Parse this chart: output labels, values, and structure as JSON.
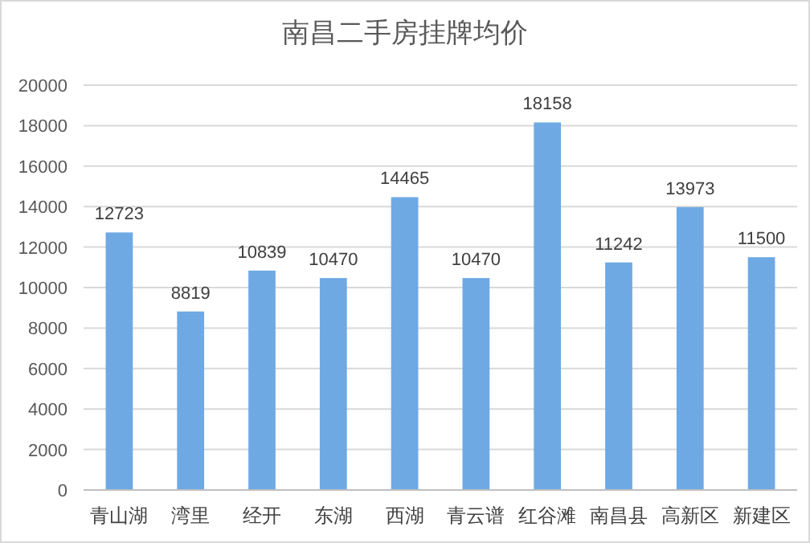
{
  "chart_data": {
    "type": "bar",
    "title": "南昌二手房挂牌均价",
    "categories": [
      "青山湖",
      "湾里",
      "经开",
      "东湖",
      "西湖",
      "青云谱",
      "红谷滩",
      "南昌县",
      "高新区",
      "新建区"
    ],
    "values": [
      12723,
      8819,
      10839,
      10470,
      14465,
      10470,
      18158,
      11242,
      13973,
      11500
    ],
    "color": "#6ea9e4",
    "ylim": [
      0,
      20000
    ],
    "yticks": [
      0,
      2000,
      4000,
      6000,
      8000,
      10000,
      12000,
      14000,
      16000,
      18000,
      20000
    ],
    "grid": "y",
    "data_labels": true
  }
}
